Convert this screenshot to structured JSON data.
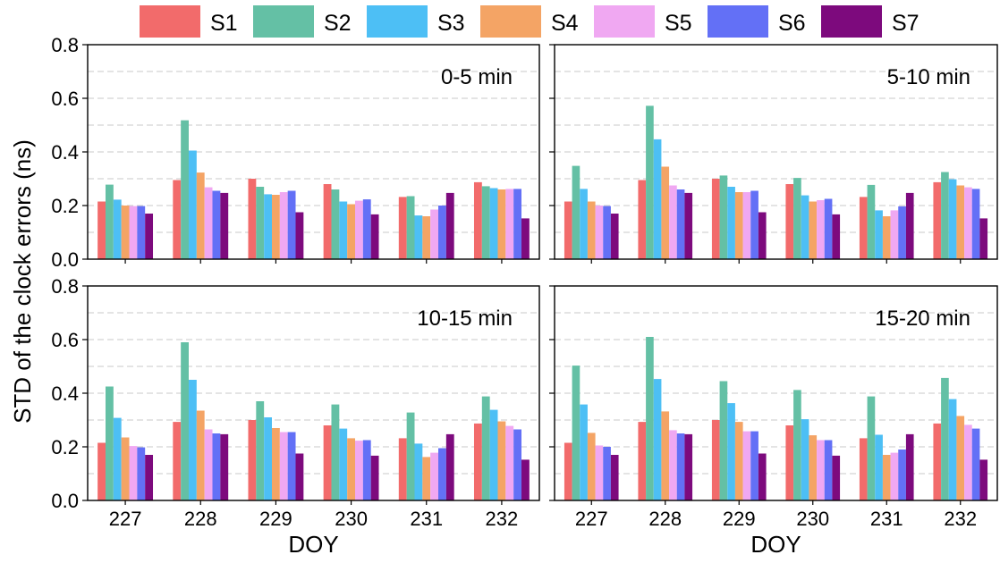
{
  "chart_data": {
    "type": "bar",
    "ylabel": "STD of the clock errors (ns)",
    "xlabel": "DOY",
    "ylim": [
      0.0,
      0.8
    ],
    "yticks": [
      "0.0",
      "0.2",
      "0.4",
      "0.6",
      "0.8"
    ],
    "categories": [
      "227",
      "228",
      "229",
      "230",
      "231",
      "232"
    ],
    "grid": true,
    "legend_position": "top",
    "series_names": [
      "S1",
      "S2",
      "S3",
      "S4",
      "S5",
      "S6",
      "S7"
    ],
    "colors": [
      "#f26b6b",
      "#64c0a5",
      "#4dbff5",
      "#f4a465",
      "#f0a8f2",
      "#6370f6",
      "#7d0a7d"
    ],
    "panels": [
      {
        "label": "0-5 min",
        "series": [
          {
            "name": "S1",
            "values": [
              0.215,
              0.295,
              0.3,
              0.28,
              0.232,
              0.287
            ]
          },
          {
            "name": "S2",
            "values": [
              0.278,
              0.518,
              0.27,
              0.26,
              0.235,
              0.272
            ]
          },
          {
            "name": "S3",
            "values": [
              0.222,
              0.405,
              0.242,
              0.215,
              0.163,
              0.265
            ]
          },
          {
            "name": "S4",
            "values": [
              0.2,
              0.323,
              0.24,
              0.205,
              0.16,
              0.26
            ]
          },
          {
            "name": "S5",
            "values": [
              0.198,
              0.268,
              0.25,
              0.218,
              0.185,
              0.262
            ]
          },
          {
            "name": "S6",
            "values": [
              0.198,
              0.255,
              0.255,
              0.223,
              0.2,
              0.262
            ]
          },
          {
            "name": "S7",
            "values": [
              0.17,
              0.247,
              0.175,
              0.167,
              0.247,
              0.152
            ]
          }
        ]
      },
      {
        "label": "5-10 min",
        "series": [
          {
            "name": "S1",
            "values": [
              0.215,
              0.295,
              0.3,
              0.28,
              0.232,
              0.287
            ]
          },
          {
            "name": "S2",
            "values": [
              0.348,
              0.572,
              0.312,
              0.303,
              0.277,
              0.325
            ]
          },
          {
            "name": "S3",
            "values": [
              0.262,
              0.447,
              0.27,
              0.238,
              0.182,
              0.298
            ]
          },
          {
            "name": "S4",
            "values": [
              0.215,
              0.345,
              0.25,
              0.215,
              0.16,
              0.275
            ]
          },
          {
            "name": "S5",
            "values": [
              0.2,
              0.275,
              0.25,
              0.22,
              0.182,
              0.268
            ]
          },
          {
            "name": "S6",
            "values": [
              0.198,
              0.26,
              0.255,
              0.225,
              0.197,
              0.262
            ]
          },
          {
            "name": "S7",
            "values": [
              0.17,
              0.247,
              0.175,
              0.167,
              0.247,
              0.152
            ]
          }
        ]
      },
      {
        "label": "10-15 min",
        "series": [
          {
            "name": "S1",
            "values": [
              0.215,
              0.293,
              0.3,
              0.28,
              0.232,
              0.287
            ]
          },
          {
            "name": "S2",
            "values": [
              0.425,
              0.59,
              0.37,
              0.358,
              0.328,
              0.388
            ]
          },
          {
            "name": "S3",
            "values": [
              0.308,
              0.45,
              0.31,
              0.268,
              0.212,
              0.338
            ]
          },
          {
            "name": "S4",
            "values": [
              0.235,
              0.335,
              0.27,
              0.232,
              0.162,
              0.295
            ]
          },
          {
            "name": "S5",
            "values": [
              0.203,
              0.265,
              0.255,
              0.223,
              0.178,
              0.278
            ]
          },
          {
            "name": "S6",
            "values": [
              0.198,
              0.25,
              0.255,
              0.225,
              0.195,
              0.265
            ]
          },
          {
            "name": "S7",
            "values": [
              0.17,
              0.247,
              0.175,
              0.167,
              0.247,
              0.152
            ]
          }
        ]
      },
      {
        "label": "15-20 min",
        "series": [
          {
            "name": "S1",
            "values": [
              0.215,
              0.293,
              0.3,
              0.28,
              0.232,
              0.287
            ]
          },
          {
            "name": "S2",
            "values": [
              0.503,
              0.61,
              0.445,
              0.412,
              0.388,
              0.457
            ]
          },
          {
            "name": "S3",
            "values": [
              0.358,
              0.453,
              0.363,
              0.303,
              0.245,
              0.378
            ]
          },
          {
            "name": "S4",
            "values": [
              0.252,
              0.332,
              0.293,
              0.243,
              0.17,
              0.315
            ]
          },
          {
            "name": "S5",
            "values": [
              0.205,
              0.262,
              0.258,
              0.225,
              0.178,
              0.282
            ]
          },
          {
            "name": "S6",
            "values": [
              0.2,
              0.25,
              0.258,
              0.225,
              0.19,
              0.268
            ]
          },
          {
            "name": "S7",
            "values": [
              0.17,
              0.247,
              0.175,
              0.167,
              0.247,
              0.152
            ]
          }
        ]
      }
    ]
  }
}
